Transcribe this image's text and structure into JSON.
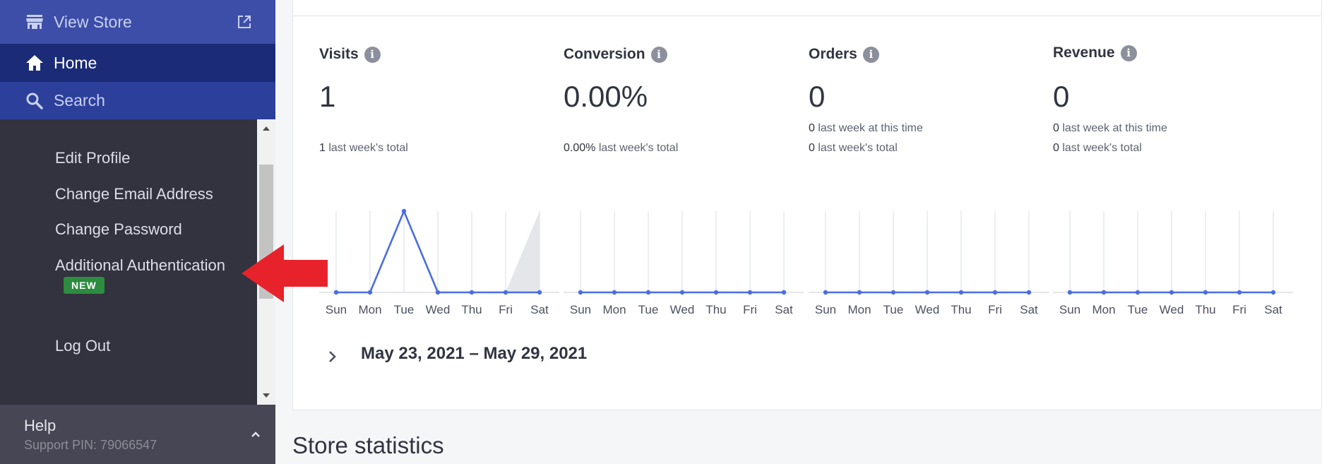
{
  "sidebar": {
    "view_store": "View Store",
    "home": "Home",
    "search": "Search",
    "menu": {
      "edit_profile": "Edit Profile",
      "change_email": "Change Email Address",
      "change_password": "Change Password",
      "additional_auth": "Additional Authentication",
      "new_badge": "NEW",
      "log_out": "Log Out"
    },
    "help": {
      "title": "Help",
      "support_pin": "Support PIN: 79066547"
    },
    "colors": {
      "view_store_bg": "#3c4ea8",
      "home_bg": "#1b2b78",
      "search_bg": "#2c3f9b",
      "menu_bg": "#33323f",
      "badge_bg": "#2c8c3f"
    }
  },
  "metrics": [
    {
      "label": "Visits",
      "value": "1",
      "line1_value": "",
      "line1_text": "",
      "line2_value": "1",
      "line2_text": " last week's total"
    },
    {
      "label": "Conversion",
      "value": "0.00%",
      "line1_value": "",
      "line1_text": "",
      "line2_value": "0.00%",
      "line2_text": " last week's total"
    },
    {
      "label": "Orders",
      "value": "0",
      "line1_value": "0",
      "line1_text": " last week at this time",
      "line2_value": "0",
      "line2_text": " last week's total"
    },
    {
      "label": "Revenue",
      "value": "0",
      "line1_value": "0",
      "line1_text": " last week at this time",
      "line2_value": "0",
      "line2_text": " last week's total"
    }
  ],
  "chart_data": [
    {
      "type": "line",
      "metric": "Visits",
      "x": [
        "Sun",
        "Mon",
        "Tue",
        "Wed",
        "Thu",
        "Fri",
        "Sat"
      ],
      "series": [
        {
          "values": [
            0,
            0,
            1,
            0,
            0,
            0,
            0
          ]
        }
      ],
      "last_week_area": [
        0,
        0,
        0,
        0,
        0,
        0,
        1
      ],
      "ylim": [
        0,
        1
      ],
      "grid": true
    },
    {
      "type": "line",
      "metric": "Conversion",
      "x": [
        "Sun",
        "Mon",
        "Tue",
        "Wed",
        "Thu",
        "Fri",
        "Sat"
      ],
      "series": [
        {
          "values": [
            0,
            0,
            0,
            0,
            0,
            0,
            0
          ]
        }
      ],
      "ylim": [
        0,
        1
      ],
      "grid": true
    },
    {
      "type": "line",
      "metric": "Orders",
      "x": [
        "Sun",
        "Mon",
        "Tue",
        "Wed",
        "Thu",
        "Fri",
        "Sat"
      ],
      "series": [
        {
          "values": [
            0,
            0,
            0,
            0,
            0,
            0,
            0
          ]
        }
      ],
      "ylim": [
        0,
        1
      ],
      "grid": true
    },
    {
      "type": "line",
      "metric": "Revenue",
      "x": [
        "Sun",
        "Mon",
        "Tue",
        "Wed",
        "Thu",
        "Fri",
        "Sat"
      ],
      "series": [
        {
          "values": [
            0,
            0,
            0,
            0,
            0,
            0,
            0
          ]
        }
      ],
      "ylim": [
        0,
        1
      ],
      "grid": true
    }
  ],
  "date_range": "May 23, 2021 – May 29, 2021",
  "store_statistics_title": "Store statistics",
  "colors": {
    "line": "#4a6ee0",
    "area": "#e4e6ea",
    "grid": "#e4e6ea",
    "annotation_arrow": "#e8222b"
  }
}
